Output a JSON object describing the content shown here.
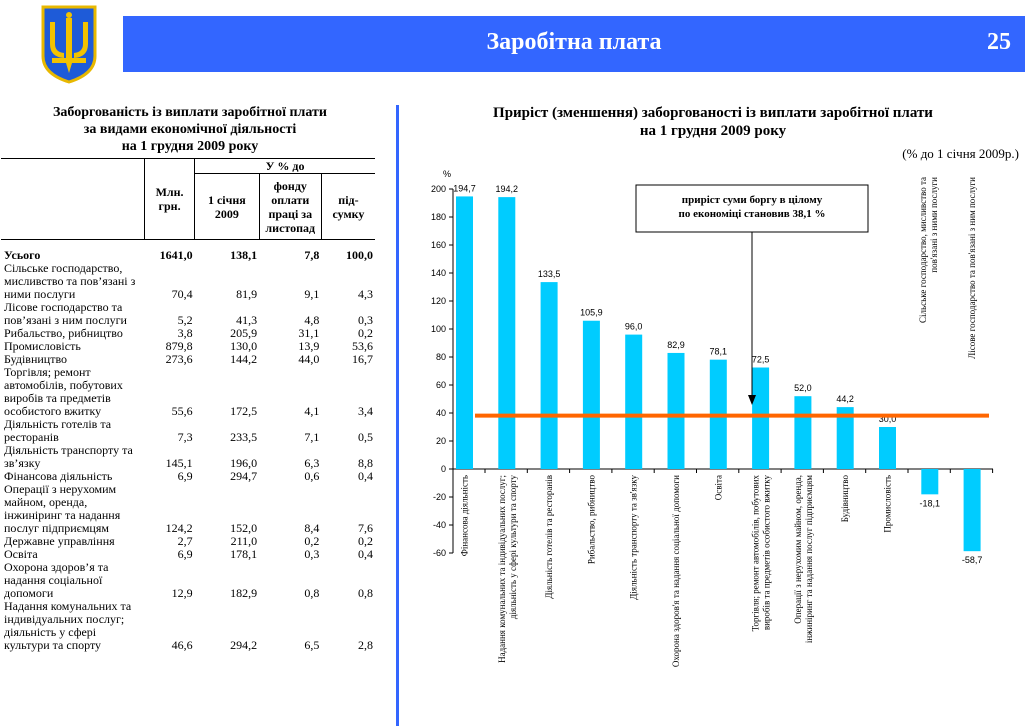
{
  "header": {
    "title": "Заробітна плата",
    "page_number": "25",
    "banner_color": "#3366ff"
  },
  "left": {
    "title_lines": [
      "Заборгованість із виплати заробітної плати",
      "за видами економічної діяльності",
      "на 1 грудня 2009 року"
    ],
    "table": {
      "col_mln": "Млн. грн.",
      "group_header": "У % до",
      "col_jan": "1 січня 2009",
      "col_fund": "фонду оплати праці за листопад",
      "col_total": "під-сумку",
      "rows": [
        {
          "name": "Усього",
          "mln": "1641,0",
          "jan": "138,1",
          "fund": "7,8",
          "total": "100,0",
          "bold": true
        },
        {
          "name": "Сільське господарство, мисливство та пов’язані з ними послуги",
          "mln": "70,4",
          "jan": "81,9",
          "fund": "9,1",
          "total": "4,3"
        },
        {
          "name": "Лісове господарство та пов’язані з ним послуги",
          "mln": "5,2",
          "jan": "41,3",
          "fund": "4,8",
          "total": "0,3"
        },
        {
          "name": "Рибальство, рибництво",
          "mln": "3,8",
          "jan": "205,9",
          "fund": "31,1",
          "total": "0,2"
        },
        {
          "name": "Промисловість",
          "mln": "879,8",
          "jan": "130,0",
          "fund": "13,9",
          "total": "53,6"
        },
        {
          "name": "Будівництво",
          "mln": "273,6",
          "jan": "144,2",
          "fund": "44,0",
          "total": "16,7"
        },
        {
          "name": "Торгівля; ремонт автомобілів, побутових виробів та предметів особистого вжитку",
          "mln": "55,6",
          "jan": "172,5",
          "fund": "4,1",
          "total": "3,4"
        },
        {
          "name": "Діяльність готелів та ресторанів",
          "mln": "7,3",
          "jan": "233,5",
          "fund": "7,1",
          "total": "0,5"
        },
        {
          "name": "Діяльність транспорту та зв’язку",
          "mln": "145,1",
          "jan": "196,0",
          "fund": "6,3",
          "total": "8,8"
        },
        {
          "name": "Фінансова діяльність",
          "mln": "6,9",
          "jan": "294,7",
          "fund": "0,6",
          "total": "0,4"
        },
        {
          "name": "Операції з нерухомим майном, оренда, інжиніринг та надання послуг підприємцям",
          "mln": "124,2",
          "jan": "152,0",
          "fund": "8,4",
          "total": "7,6"
        },
        {
          "name": "Державне управління",
          "mln": "2,7",
          "jan": "211,0",
          "fund": "0,2",
          "total": "0,2"
        },
        {
          "name": "Освіта",
          "mln": "6,9",
          "jan": "178,1",
          "fund": "0,3",
          "total": "0,4"
        },
        {
          "name": "Охорона здоров’я та надання соціальної допомоги",
          "mln": "12,9",
          "jan": "182,9",
          "fund": "0,8",
          "total": "0,8"
        },
        {
          "name": "Надання комунальних та індивідуальних послуг; діяльність у сфері культури та спорту",
          "mln": "46,6",
          "jan": "294,2",
          "fund": "6,5",
          "total": "2,8"
        }
      ]
    }
  },
  "chart_data": {
    "type": "bar",
    "title_lines": [
      "Приріст (зменшення) заборгованості із виплати заробітної плати",
      "на 1 грудня 2009 року"
    ],
    "subtitle": "(% до 1 січня 2009р.)",
    "ylabel": "%",
    "ylim": [
      -60,
      200
    ],
    "yticks": [
      200,
      180,
      160,
      140,
      120,
      100,
      80,
      60,
      40,
      20,
      0,
      -20,
      -40,
      -60
    ],
    "categories": [
      "Фінансова діяльність",
      "Надання комунальних та індивідуальних послуг; діяльність у сфері культури та спорту",
      "Діяльність готелів та ресторанів",
      "Рибальство, рибництво",
      "Діяльність транспорту та зв'язку",
      "Охорона здоров'я та надання соціальної допомоги",
      "Освіта",
      "Торгівля; ремонт автомобілів, побутових виробів та предметів особистого вжитку",
      "Операції з нерухомим майном, оренда, інжиніринг та надання послуг підприємцям",
      "Будівництво",
      "Промисловість",
      "Сільське господарство, мисливство та пов'язані з ними послуги",
      "Лісове господарство та пов'язані з ним послуги"
    ],
    "values": [
      194.7,
      194.2,
      133.5,
      105.9,
      96.0,
      82.9,
      78.1,
      72.5,
      52.0,
      44.2,
      30.0,
      -18.1,
      -58.7
    ],
    "value_labels": [
      "194,7",
      "194,2",
      "133,5",
      "105,9",
      "96,0",
      "82,9",
      "78,1",
      "72,5",
      "52,0",
      "44,2",
      "30,0",
      "-18,1",
      "-58,7"
    ],
    "reference_line": 38.1,
    "annotation": "приріст суми боргу в цілому по економіці становив 38,1 %",
    "bar_color": "#00ccff",
    "line_color": "#ff6600",
    "grid": false
  }
}
